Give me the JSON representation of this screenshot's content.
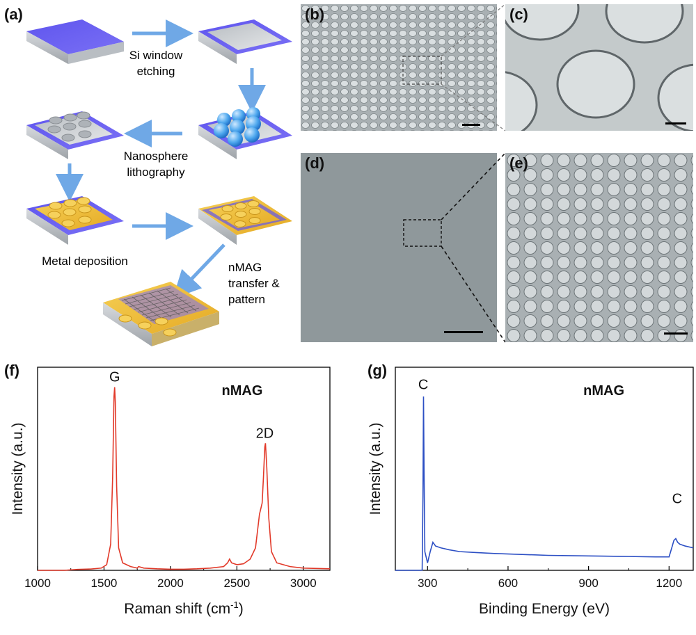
{
  "schematic": {
    "label": "(a)",
    "steps": {
      "etching": [
        "Si window",
        "etching"
      ],
      "lithography": [
        "Nanosphere",
        "lithography"
      ],
      "deposition": "Metal deposition",
      "transfer": [
        "nMAG",
        "transfer &",
        "pattern"
      ]
    }
  },
  "micrographs": [
    {
      "key": "b",
      "label": "(b)"
    },
    {
      "key": "c",
      "label": "(c)"
    },
    {
      "key": "d",
      "label": "(d)"
    },
    {
      "key": "e",
      "label": "(e)"
    }
  ],
  "colors": {
    "substrate_top": "#6a5ff0",
    "substrate_side": "#c9cdd2",
    "gold": "#f0c64a",
    "arrow": "#6fa8e6",
    "raman_line": "#e23a2a",
    "xps_line": "#2c4fc4",
    "sem_gray": "#9aa2a6"
  },
  "chart_data": [
    {
      "panel_label": "(f)",
      "type": "line",
      "title": "nMAG",
      "xlabel": "Raman shift (cm",
      "xlabel_sup": "-1",
      "xlabel_tail": ")",
      "ylabel": "Intensity (a.u.)",
      "xlim": [
        1000,
        3200
      ],
      "xticks": [
        "1000",
        "1500",
        "2000",
        "2500",
        "3000"
      ],
      "xtick_values": [
        1000,
        1500,
        2000,
        2500,
        3000
      ],
      "ylim": [
        0,
        1.0
      ],
      "annotations": [
        {
          "text": "G",
          "x": 1580,
          "y": 0.98
        },
        {
          "text": "2D",
          "x": 2710,
          "y": 0.68
        }
      ],
      "series": [
        {
          "color": "#e23a2a",
          "x": [
            1000,
            1100,
            1200,
            1300,
            1400,
            1480,
            1520,
            1550,
            1565,
            1575,
            1580,
            1585,
            1595,
            1610,
            1640,
            1700,
            1750,
            1760,
            1800,
            1900,
            2000,
            2100,
            2200,
            2300,
            2400,
            2430,
            2445,
            2460,
            2500,
            2550,
            2600,
            2640,
            2670,
            2690,
            2700,
            2710,
            2715,
            2725,
            2740,
            2760,
            2800,
            2900,
            3000,
            3100,
            3200
          ],
          "y": [
            0.0,
            0.0,
            0.0,
            0.005,
            0.007,
            0.012,
            0.03,
            0.14,
            0.5,
            0.93,
            0.98,
            0.9,
            0.45,
            0.12,
            0.04,
            0.02,
            0.012,
            0.02,
            0.012,
            0.008,
            0.006,
            0.006,
            0.008,
            0.012,
            0.02,
            0.04,
            0.06,
            0.04,
            0.03,
            0.035,
            0.06,
            0.12,
            0.3,
            0.36,
            0.5,
            0.66,
            0.68,
            0.55,
            0.28,
            0.1,
            0.04,
            0.02,
            0.012,
            0.01,
            0.008
          ]
        }
      ]
    },
    {
      "panel_label": "(g)",
      "type": "line",
      "title": "nMAG",
      "xlabel": "Binding Energy (eV)",
      "ylabel": "Intensity (a.u.)",
      "xlim": [
        180,
        1290
      ],
      "xticks": [
        "300",
        "600",
        "900",
        "1200"
      ],
      "xtick_values": [
        300,
        600,
        900,
        1200
      ],
      "ylim": [
        0,
        1.0
      ],
      "annotations": [
        {
          "text": "C",
          "x": 284,
          "y": 0.94
        },
        {
          "text": "C",
          "x": 1230,
          "y": 0.33
        }
      ],
      "series": [
        {
          "color": "#2c4fc4",
          "x": [
            180,
            200,
            240,
            270,
            280,
            283,
            285,
            287,
            290,
            295,
            300,
            310,
            320,
            330,
            350,
            380,
            420,
            480,
            550,
            650,
            750,
            850,
            950,
            1050,
            1150,
            1200,
            1210,
            1218,
            1225,
            1232,
            1240,
            1260,
            1290
          ],
          "y": [
            0.0,
            0.0,
            0.0,
            0.0,
            0.001,
            0.4,
            0.93,
            0.55,
            0.1,
            0.07,
            0.04,
            0.1,
            0.15,
            0.13,
            0.12,
            0.11,
            0.1,
            0.095,
            0.09,
            0.085,
            0.08,
            0.078,
            0.076,
            0.074,
            0.072,
            0.072,
            0.12,
            0.16,
            0.17,
            0.15,
            0.14,
            0.13,
            0.12
          ]
        }
      ]
    }
  ]
}
